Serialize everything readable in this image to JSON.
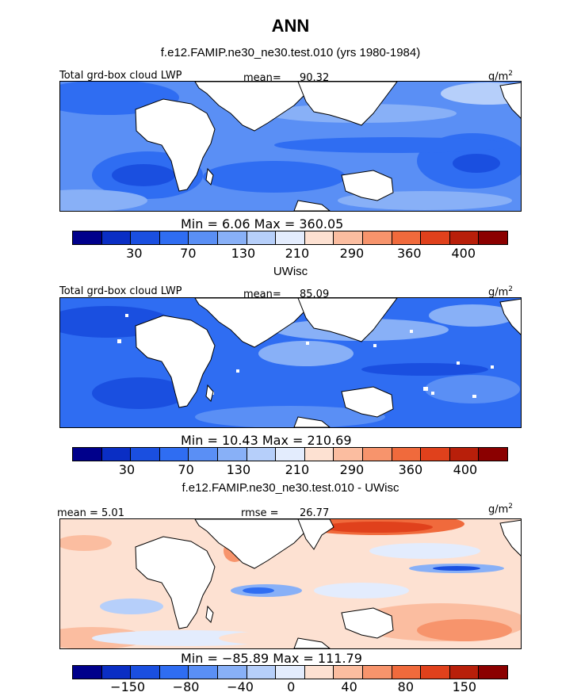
{
  "header": {
    "title": "ANN",
    "subtitle": "f.e12.FAMIP.ne30_ne30.test.010 (yrs 1980-1984)"
  },
  "colors": {
    "scale": [
      "#00008b",
      "#0a2ec4",
      "#1a4fe0",
      "#2f6df2",
      "#5a8ff5",
      "#88b0f7",
      "#b6cffa",
      "#e3ecfd",
      "#fde1d2",
      "#fbbda0",
      "#f7946c",
      "#f06a3c",
      "#e0411c",
      "#b81f0a",
      "#8b0000"
    ],
    "land": "#ffffff",
    "coast": "#000000"
  },
  "panels": [
    {
      "name": "model",
      "left_label": "Total grd-box cloud LWP",
      "mean_label": "mean=",
      "mean_value": "90.32",
      "units": "g/m",
      "units_sup": "2",
      "stats": "Min =     6.06  Max =  360.05",
      "ticks": [
        "30",
        "70",
        "130",
        "210",
        "290",
        "360",
        "400"
      ],
      "min": 6.06,
      "max": 360.05,
      "mean": 90.32
    },
    {
      "name": "obs",
      "caption": "UWisc",
      "left_label": "Total grd-box cloud LWP",
      "mean_label": "mean=",
      "mean_value": "85.09",
      "units": "g/m",
      "units_sup": "2",
      "stats": "Min =   10.43  Max =  210.69",
      "ticks": [
        "30",
        "70",
        "130",
        "210",
        "290",
        "360",
        "400"
      ],
      "min": 10.43,
      "max": 210.69,
      "mean": 85.09
    },
    {
      "name": "diff",
      "caption": "f.e12.FAMIP.ne30_ne30.test.010 - UWisc",
      "left_label": "mean =     5.01",
      "mean_label": "rmse =",
      "mean_value": "26.77",
      "units": "g/m",
      "units_sup": "2",
      "stats": "Min =  −85.89  Max =  111.79",
      "ticks": [
        "−150",
        "−80",
        "−40",
        "0",
        "40",
        "80",
        "150"
      ],
      "min": -85.89,
      "max": 111.79,
      "mean": 5.01,
      "rmse": 26.77
    }
  ]
}
